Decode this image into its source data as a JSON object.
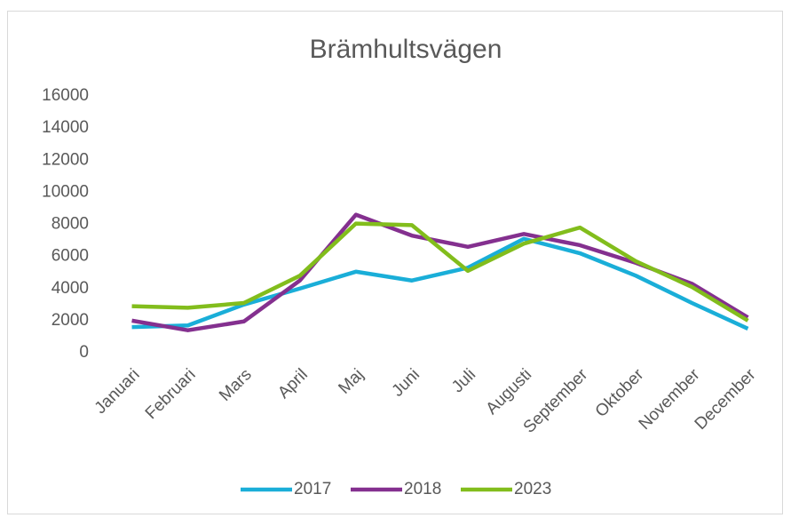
{
  "chart_data": {
    "type": "line",
    "title": "Brämhultsvägen",
    "categories": [
      "Januari",
      "Februari",
      "Mars",
      "April",
      "Maj",
      "Juni",
      "Juli",
      "Augusti",
      "September",
      "Oktober",
      "November",
      "December"
    ],
    "series": [
      {
        "name": "2017",
        "color": "#1aaed8",
        "values": [
          1600,
          1700,
          3000,
          4000,
          5050,
          4500,
          5300,
          7100,
          6200,
          4800,
          3100,
          1500
        ]
      },
      {
        "name": "2018",
        "color": "#84308f",
        "values": [
          2000,
          1400,
          1950,
          4500,
          8600,
          7300,
          6600,
          7400,
          6700,
          5600,
          4300,
          2200
        ]
      },
      {
        "name": "2023",
        "color": "#82bd1c",
        "values": [
          2900,
          2800,
          3100,
          4800,
          8050,
          7950,
          5100,
          6800,
          7800,
          5700,
          4100,
          2000
        ]
      }
    ],
    "ylim": [
      0,
      16000
    ],
    "yticks": [
      0,
      2000,
      4000,
      6000,
      8000,
      10000,
      12000,
      14000,
      16000
    ],
    "grid": false,
    "legend": "bottom"
  }
}
